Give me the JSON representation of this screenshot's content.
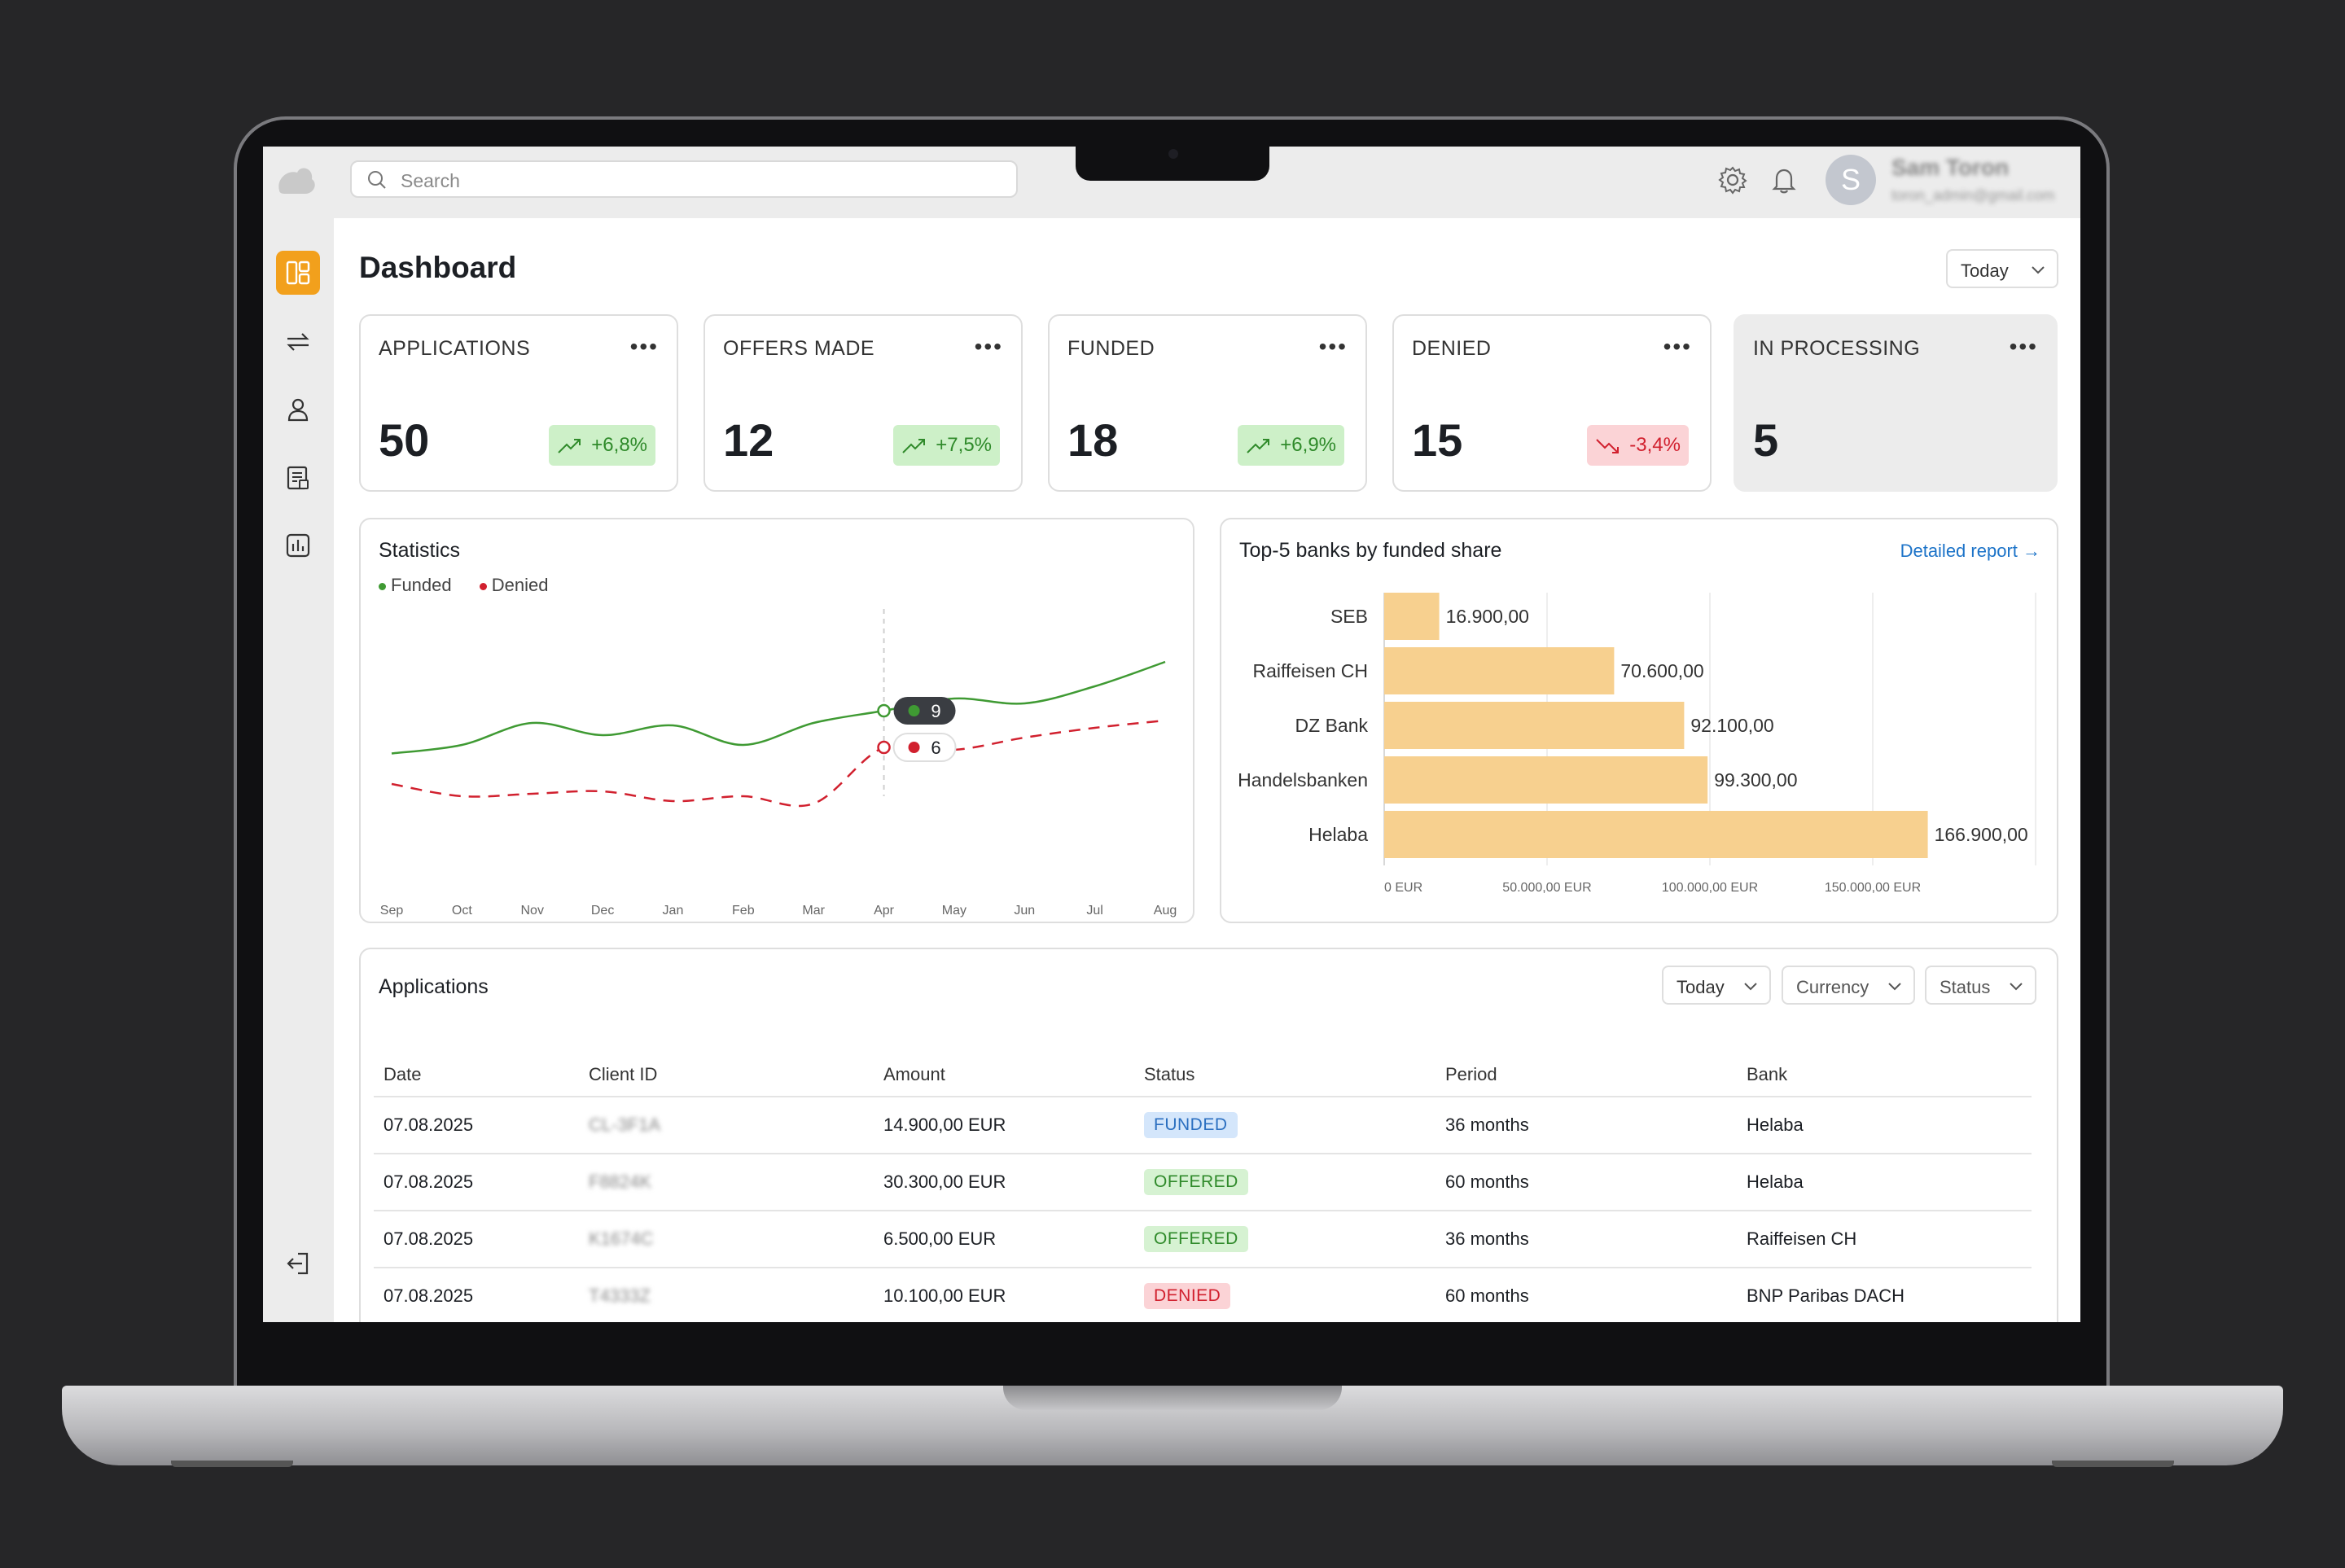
{
  "topbar": {
    "search_placeholder": "Search",
    "user_initial": "S",
    "user_name": "Sam Toron",
    "user_email": "toron_admin@gmail.com"
  },
  "sidebar": {
    "items": [
      {
        "icon": "dashboard-icon",
        "active": true
      },
      {
        "icon": "transfer-icon",
        "active": false
      },
      {
        "icon": "user-icon",
        "active": false
      },
      {
        "icon": "document-list-icon",
        "active": false
      },
      {
        "icon": "bar-chart-icon",
        "active": false
      }
    ],
    "logout_icon": "logout-icon"
  },
  "page": {
    "title": "Dashboard",
    "period": "Today"
  },
  "kpis": [
    {
      "label": "APPLICATIONS",
      "value": "50",
      "change": "+6,8%",
      "trend": "up"
    },
    {
      "label": "OFFERS MADE",
      "value": "12",
      "change": "+7,5%",
      "trend": "up"
    },
    {
      "label": "FUNDED",
      "value": "18",
      "change": "+6,9%",
      "trend": "up"
    },
    {
      "label": "DENIED",
      "value": "15",
      "change": "-3,4%",
      "trend": "down"
    },
    {
      "label": "IN PROCESSING",
      "value": "5",
      "change": "",
      "trend": "none"
    }
  ],
  "statistics": {
    "title": "Statistics",
    "legend_funded": "Funded",
    "legend_denied": "Denied",
    "tooltip_funded": "9",
    "tooltip_denied": "6"
  },
  "banks_card": {
    "title": "Top-5 banks by funded share",
    "link": "Detailed report →"
  },
  "chart_data": [
    {
      "type": "line",
      "title": "Statistics",
      "x": [
        "Sep",
        "Oct",
        "Nov",
        "Dec",
        "Jan",
        "Feb",
        "Mar",
        "Apr",
        "May",
        "Jun",
        "Jul",
        "Aug"
      ],
      "series": [
        {
          "name": "Funded",
          "color": "#3f9a33",
          "style": "solid",
          "values": [
            5.5,
            6.2,
            8.0,
            7.0,
            7.8,
            6.2,
            8.0,
            9.0,
            10.0,
            9.6,
            11.0,
            13.0
          ]
        },
        {
          "name": "Denied",
          "color": "#d1202e",
          "style": "dashed",
          "values": [
            3.0,
            2.0,
            2.2,
            2.4,
            1.6,
            2.0,
            1.4,
            6.0,
            5.8,
            6.8,
            7.6,
            8.2
          ]
        }
      ],
      "highlight": {
        "x": "Apr",
        "funded": 9,
        "denied": 6
      },
      "ylim": [
        0,
        16
      ],
      "grid": false
    },
    {
      "type": "bar",
      "orientation": "horizontal",
      "categories": [
        "SEB",
        "Raiffeisen CH",
        "DZ Bank",
        "Handelsbanken",
        "Helaba"
      ],
      "values": [
        16900,
        70600,
        92100,
        99300,
        166900
      ],
      "value_labels": [
        "16.900,00",
        "70.600,00",
        "92.100,00",
        "99.300,00",
        "166.900,00"
      ],
      "color": "#f7d08f",
      "xticks": [
        "0 EUR",
        "50.000,00 EUR",
        "100.000,00 EUR",
        "150.000,00 EUR"
      ],
      "xtick_values": [
        0,
        50000,
        100000,
        150000
      ],
      "xlim": [
        0,
        200000
      ],
      "grid": true
    }
  ],
  "applications": {
    "title": "Applications",
    "filters": [
      "Today",
      "Currency",
      "Status"
    ],
    "columns": [
      "Date",
      "Client ID",
      "Amount",
      "Status",
      "Period",
      "Bank"
    ],
    "rows": [
      {
        "date": "07.08.2025",
        "client_id": "CL-3F1A",
        "amount": "14.900,00 EUR",
        "status": "FUNDED",
        "period": "36 months",
        "bank": "Helaba"
      },
      {
        "date": "07.08.2025",
        "client_id": "F8824K",
        "amount": "30.300,00 EUR",
        "status": "OFFERED",
        "period": "60 months",
        "bank": "Helaba"
      },
      {
        "date": "07.08.2025",
        "client_id": "K1674C",
        "amount": "6.500,00 EUR",
        "status": "OFFERED",
        "period": "36 months",
        "bank": "Raiffeisen CH"
      },
      {
        "date": "07.08.2025",
        "client_id": "T4333Z",
        "amount": "10.100,00 EUR",
        "status": "DENIED",
        "period": "60 months",
        "bank": "BNP Paribas DACH"
      }
    ]
  }
}
